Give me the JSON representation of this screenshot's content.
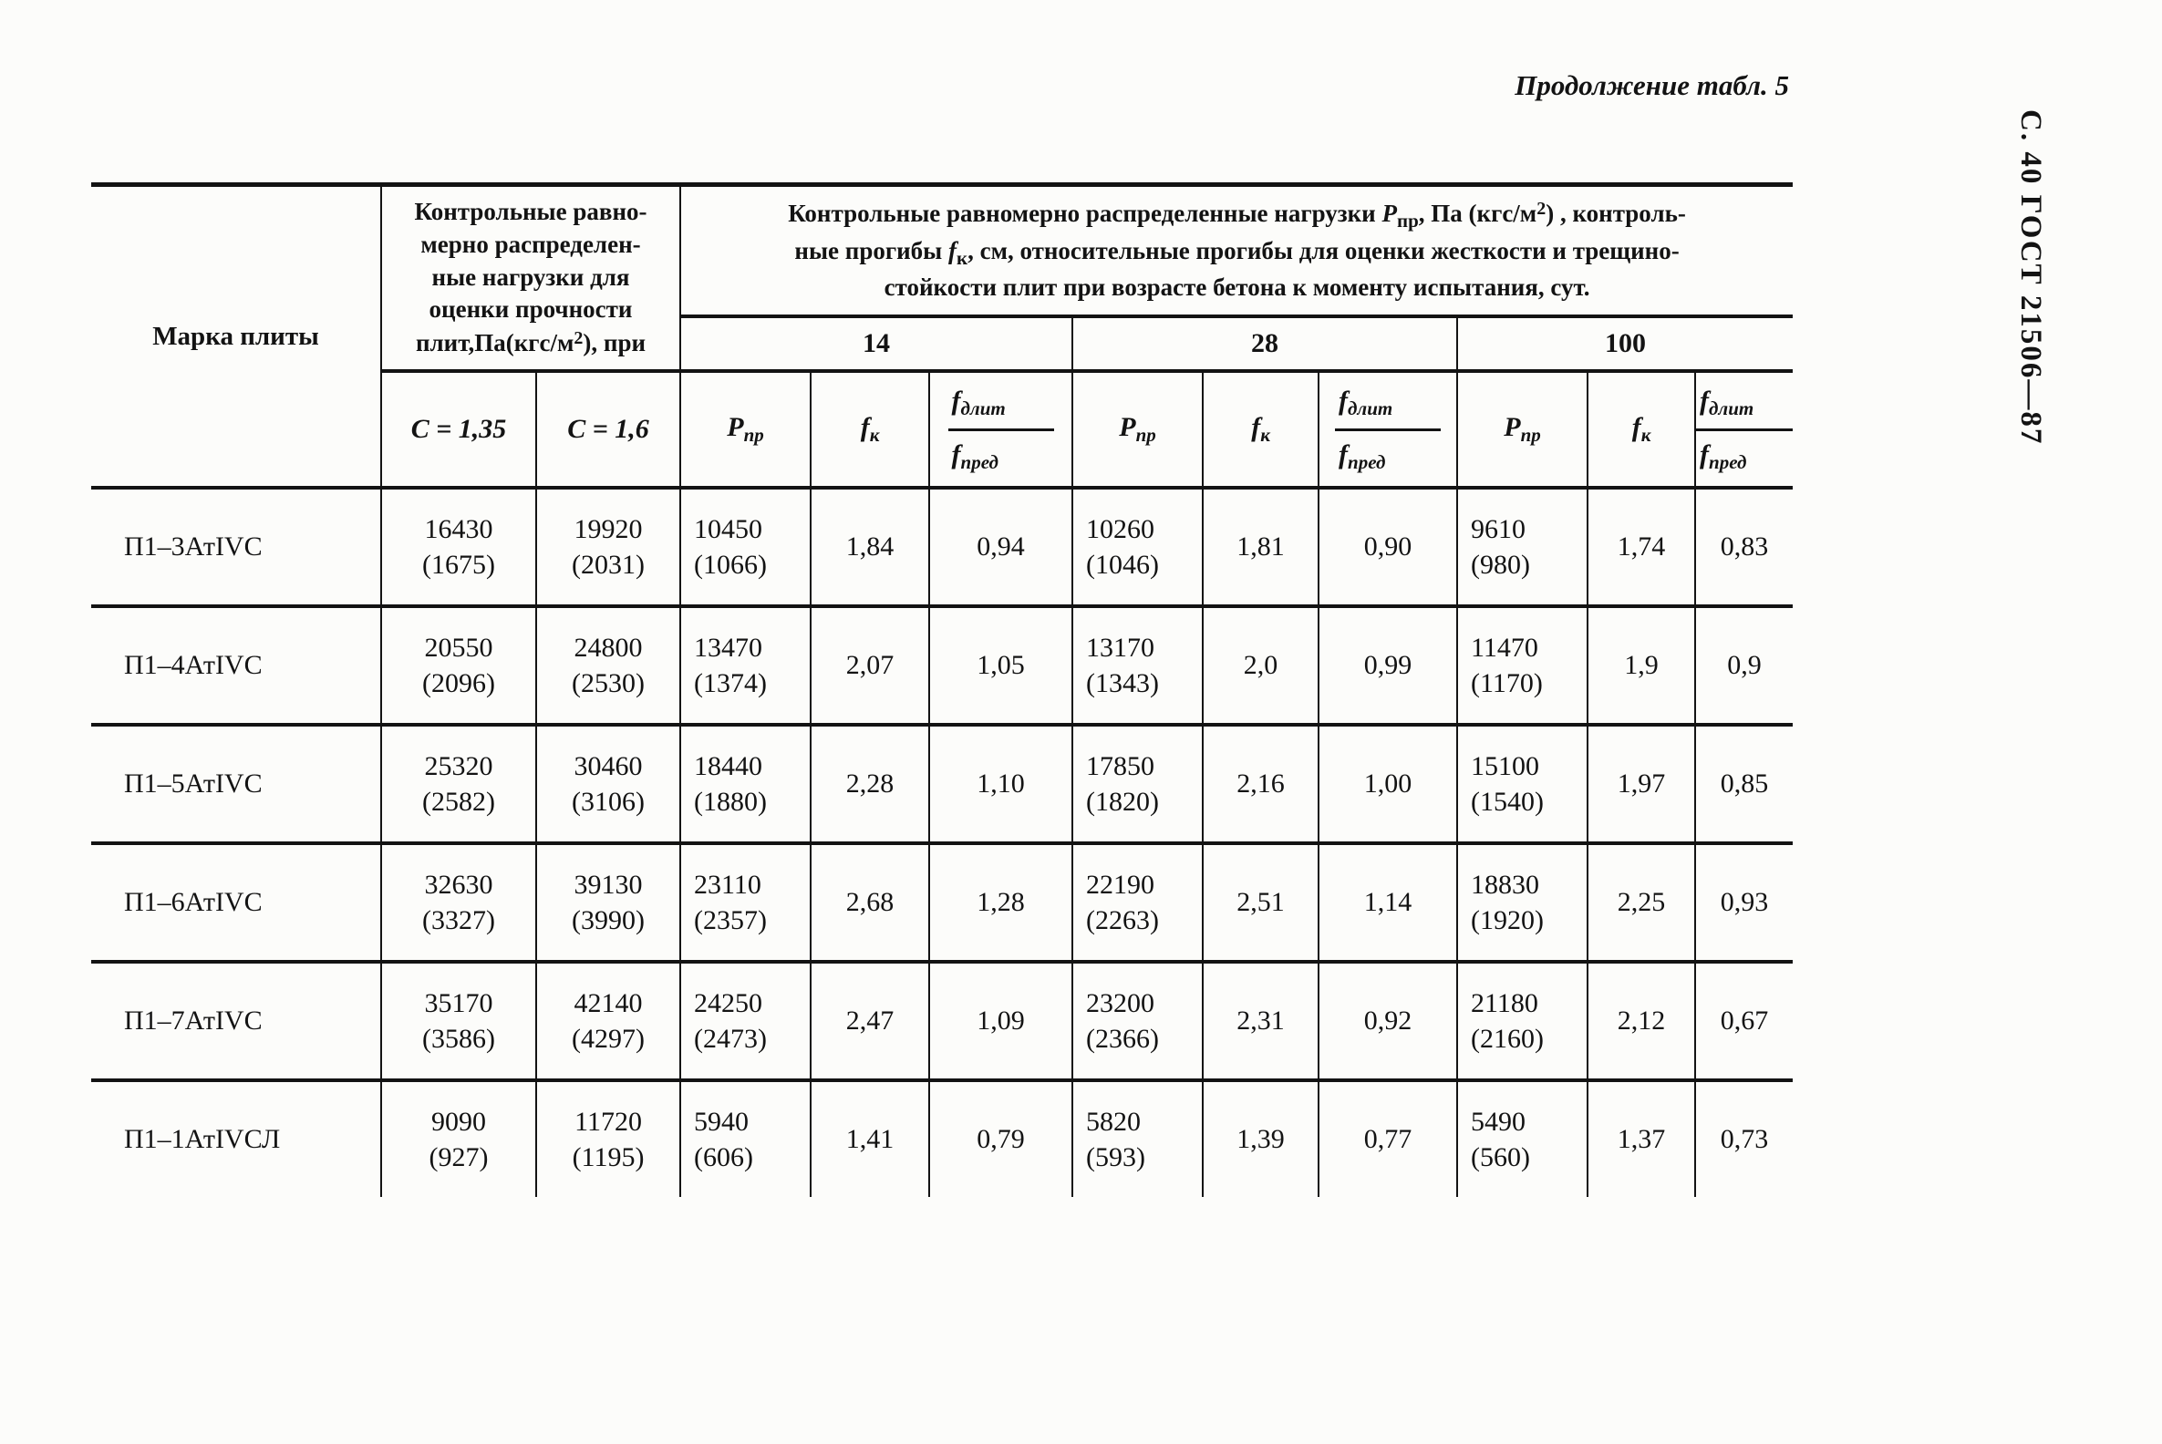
{
  "colors": {
    "ink": "#131313",
    "paper": "#fcfcfa"
  },
  "page": {
    "continuation": "Продолжение табл. 5",
    "side_label": "С. 40 ГОСТ 21506—87"
  },
  "table": {
    "mark_header": "Марка плиты",
    "strength_header_lines": [
      "Контрольные равно-",
      "мерно распределен-",
      "ные нагрузки для",
      "оценки прочности"
    ],
    "strength_header_last": {
      "pre": "плит,Па(кгс/м",
      "sup": "2",
      "post": "), при"
    },
    "main_header": {
      "l1_pre": "Контрольные равномерно распределенные нагрузки ",
      "l1_p": "Р",
      "l1_p_sub": "пр",
      "l1_mid": ", Па (кгс/м",
      "l1_sup": "2",
      "l1_post": ") , контроль-",
      "l2_pre": "ные прогибы ",
      "l2_f": "f",
      "l2_f_sub": "к",
      "l2_post": ", см, относительные прогибы для оценки жесткости и трещино-",
      "l3": "стойкости плит при возрасте бетона к моменту испытания, сут."
    },
    "ages": [
      "14",
      "28",
      "100"
    ],
    "c_labels": [
      "С = 1,35",
      "С = 1,6"
    ],
    "sub": {
      "p": "Р",
      "p_sub": "пр",
      "f": "f",
      "f_sub": "к",
      "fn": "f",
      "fn_sub": "длит",
      "fd": "f",
      "fd_sub": "пред"
    },
    "rows": [
      {
        "mark": "П1–3АтIVC",
        "c135": [
          "16430",
          "(1675)"
        ],
        "c16": [
          "19920",
          "(2031)"
        ],
        "ages": [
          {
            "p": [
              "10450",
              "(1066)"
            ],
            "f": "1,84",
            "r": "0,94"
          },
          {
            "p": [
              "10260",
              "(1046)"
            ],
            "f": "1,81",
            "r": "0,90"
          },
          {
            "p": [
              "9610",
              "(980)"
            ],
            "f": "1,74",
            "r": "0,83"
          }
        ]
      },
      {
        "mark": "П1–4АтIVC",
        "c135": [
          "20550",
          "(2096)"
        ],
        "c16": [
          "24800",
          "(2530)"
        ],
        "ages": [
          {
            "p": [
              "13470",
              "(1374)"
            ],
            "f": "2,07",
            "r": "1,05"
          },
          {
            "p": [
              "13170",
              "(1343)"
            ],
            "f": "2,0",
            "r": "0,99"
          },
          {
            "p": [
              "11470",
              "(1170)"
            ],
            "f": "1,9",
            "r": "0,9"
          }
        ]
      },
      {
        "mark": "П1–5АтIVC",
        "c135": [
          "25320",
          "(2582)"
        ],
        "c16": [
          "30460",
          "(3106)"
        ],
        "ages": [
          {
            "p": [
              "18440",
              "(1880)"
            ],
            "f": "2,28",
            "r": "1,10"
          },
          {
            "p": [
              "17850",
              "(1820)"
            ],
            "f": "2,16",
            "r": "1,00"
          },
          {
            "p": [
              "15100",
              "(1540)"
            ],
            "f": "1,97",
            "r": "0,85"
          }
        ]
      },
      {
        "mark": "П1–6АтIVC",
        "c135": [
          "32630",
          "(3327)"
        ],
        "c16": [
          "39130",
          "(3990)"
        ],
        "ages": [
          {
            "p": [
              "23110",
              "(2357)"
            ],
            "f": "2,68",
            "r": "1,28"
          },
          {
            "p": [
              "22190",
              "(2263)"
            ],
            "f": "2,51",
            "r": "1,14"
          },
          {
            "p": [
              "18830",
              "(1920)"
            ],
            "f": "2,25",
            "r": "0,93"
          }
        ]
      },
      {
        "mark": "П1–7АтIVC",
        "c135": [
          "35170",
          "(3586)"
        ],
        "c16": [
          "42140",
          "(4297)"
        ],
        "ages": [
          {
            "p": [
              "24250",
              "(2473)"
            ],
            "f": "2,47",
            "r": "1,09"
          },
          {
            "p": [
              "23200",
              "(2366)"
            ],
            "f": "2,31",
            "r": "0,92"
          },
          {
            "p": [
              "21180",
              "(2160)"
            ],
            "f": "2,12",
            "r": "0,67"
          }
        ]
      },
      {
        "mark": "П1–1АтIVСЛ",
        "c135": [
          "9090",
          "(927)"
        ],
        "c16": [
          "11720",
          "(1195)"
        ],
        "ages": [
          {
            "p": [
              "5940",
              "(606)"
            ],
            "f": "1,41",
            "r": "0,79"
          },
          {
            "p": [
              "5820",
              "(593)"
            ],
            "f": "1,39",
            "r": "0,77"
          },
          {
            "p": [
              "5490",
              "(560)"
            ],
            "f": "1,37",
            "r": "0,73"
          }
        ]
      }
    ]
  }
}
